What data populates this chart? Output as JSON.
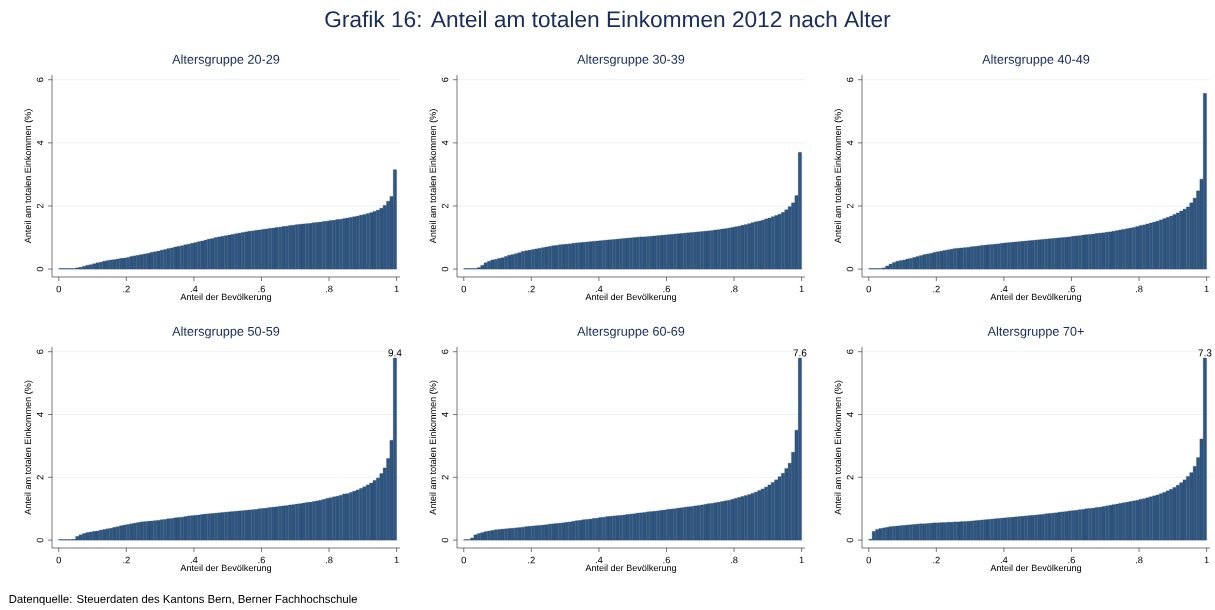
{
  "chart_data": [
    {
      "type": "histogram",
      "title": "Altersgruppe 20-29",
      "xlabel": "Anteil der Bevölkerung",
      "ylabel": "Anteil am totalen Einkommen (%)",
      "color": "#2f5680",
      "grid": "y",
      "annotations": [
        "Grafik 16: Anteil am totalen Einkommen 2012 nach Alter",
        "Datenquelle: Steuerdaten des Kantons Bern, Berner Fachhochschule"
      ],
      "xlim": [
        -0.02,
        1.01
      ],
      "ylim": [
        -0.25,
        6.15
      ],
      "xticks": [
        0,
        {
          "value": 0.2,
          "label": ".2"
        },
        {
          "value": 0.4,
          "label": ".4"
        },
        {
          "value": 0.6,
          "label": ".6"
        },
        {
          "value": 0.8,
          "label": ".8"
        },
        1
      ],
      "yticks": [
        0,
        2,
        4,
        6
      ],
      "bins": [
        0,
        0.01,
        0.02,
        0.03,
        0.04,
        0.05,
        0.06,
        0.07,
        0.08,
        0.09,
        0.1,
        0.11,
        0.12,
        0.13,
        0.14,
        0.15,
        0.16,
        0.17,
        0.18,
        0.19,
        0.2,
        0.21,
        0.22,
        0.23,
        0.24,
        0.25,
        0.26,
        0.27,
        0.28,
        0.29,
        0.3,
        0.31,
        0.32,
        0.33,
        0.34,
        0.35,
        0.36,
        0.37,
        0.38,
        0.39,
        0.4,
        0.41,
        0.42,
        0.43,
        0.44,
        0.45,
        0.46,
        0.47,
        0.48,
        0.49,
        0.5,
        0.51,
        0.52,
        0.53,
        0.54,
        0.55,
        0.56,
        0.57,
        0.58,
        0.59,
        0.6,
        0.61,
        0.62,
        0.63,
        0.64,
        0.65,
        0.66,
        0.67,
        0.68,
        0.69,
        0.7,
        0.71,
        0.72,
        0.73,
        0.74,
        0.75,
        0.76,
        0.77,
        0.78,
        0.79,
        0.8,
        0.81,
        0.82,
        0.83,
        0.84,
        0.85,
        0.86,
        0.87,
        0.88,
        0.89,
        0.9,
        0.91,
        0.92,
        0.93,
        0.94,
        0.95,
        0.96,
        0.97,
        0.98,
        0.99,
        1
      ],
      "values": [
        0.02,
        0.02,
        0.02,
        0.02,
        0.02,
        0.04,
        0.06,
        0.09,
        0.12,
        0.14,
        0.17,
        0.2,
        0.22,
        0.25,
        0.27,
        0.29,
        0.3,
        0.32,
        0.34,
        0.35,
        0.37,
        0.4,
        0.42,
        0.44,
        0.46,
        0.48,
        0.5,
        0.53,
        0.55,
        0.57,
        0.6,
        0.62,
        0.65,
        0.67,
        0.7,
        0.72,
        0.74,
        0.77,
        0.79,
        0.82,
        0.84,
        0.87,
        0.89,
        0.92,
        0.95,
        0.97,
        1.0,
        1.02,
        1.04,
        1.06,
        1.08,
        1.1,
        1.12,
        1.14,
        1.16,
        1.18,
        1.2,
        1.21,
        1.23,
        1.24,
        1.26,
        1.27,
        1.29,
        1.3,
        1.32,
        1.33,
        1.35,
        1.36,
        1.38,
        1.39,
        1.41,
        1.42,
        1.43,
        1.44,
        1.45,
        1.47,
        1.48,
        1.49,
        1.51,
        1.52,
        1.54,
        1.55,
        1.57,
        1.58,
        1.6,
        1.62,
        1.64,
        1.66,
        1.68,
        1.71,
        1.73,
        1.76,
        1.79,
        1.83,
        1.87,
        1.93,
        2.02,
        2.15,
        2.3,
        3.15
      ]
    },
    {
      "type": "histogram",
      "title": "Altersgruppe 30-39",
      "xlabel": "Anteil der Bevölkerung",
      "ylabel": "Anteil am totalen Einkommen (%)",
      "color": "#2f5680",
      "grid": "y",
      "xlim": [
        -0.02,
        1.01
      ],
      "ylim": [
        -0.25,
        6.15
      ],
      "xticks": [
        0,
        {
          "value": 0.2,
          "label": ".2"
        },
        {
          "value": 0.4,
          "label": ".4"
        },
        {
          "value": 0.6,
          "label": ".6"
        },
        {
          "value": 0.8,
          "label": ".8"
        },
        1
      ],
      "yticks": [
        0,
        2,
        4,
        6
      ],
      "bins": [
        0,
        0.01,
        0.02,
        0.03,
        0.04,
        0.05,
        0.06,
        0.07,
        0.08,
        0.09,
        0.1,
        0.11,
        0.12,
        0.13,
        0.14,
        0.15,
        0.16,
        0.17,
        0.18,
        0.19,
        0.2,
        0.21,
        0.22,
        0.23,
        0.24,
        0.25,
        0.26,
        0.27,
        0.28,
        0.29,
        0.3,
        0.31,
        0.32,
        0.33,
        0.34,
        0.35,
        0.36,
        0.37,
        0.38,
        0.39,
        0.4,
        0.41,
        0.42,
        0.43,
        0.44,
        0.45,
        0.46,
        0.47,
        0.48,
        0.49,
        0.5,
        0.51,
        0.52,
        0.53,
        0.54,
        0.55,
        0.56,
        0.57,
        0.58,
        0.59,
        0.6,
        0.61,
        0.62,
        0.63,
        0.64,
        0.65,
        0.66,
        0.67,
        0.68,
        0.69,
        0.7,
        0.71,
        0.72,
        0.73,
        0.74,
        0.75,
        0.76,
        0.77,
        0.78,
        0.79,
        0.8,
        0.81,
        0.82,
        0.83,
        0.84,
        0.85,
        0.86,
        0.87,
        0.88,
        0.89,
        0.9,
        0.91,
        0.92,
        0.93,
        0.94,
        0.95,
        0.96,
        0.97,
        0.98,
        0.99,
        1
      ],
      "values": [
        0.02,
        0.02,
        0.02,
        0.02,
        0.05,
        0.12,
        0.2,
        0.25,
        0.29,
        0.31,
        0.34,
        0.36,
        0.4,
        0.44,
        0.46,
        0.49,
        0.52,
        0.56,
        0.58,
        0.6,
        0.62,
        0.64,
        0.66,
        0.68,
        0.7,
        0.72,
        0.74,
        0.75,
        0.77,
        0.78,
        0.79,
        0.8,
        0.82,
        0.83,
        0.84,
        0.85,
        0.86,
        0.87,
        0.88,
        0.89,
        0.9,
        0.91,
        0.92,
        0.93,
        0.94,
        0.95,
        0.96,
        0.97,
        0.98,
        0.99,
        1.0,
        1.01,
        1.02,
        1.02,
        1.03,
        1.04,
        1.05,
        1.06,
        1.07,
        1.08,
        1.09,
        1.1,
        1.11,
        1.12,
        1.13,
        1.14,
        1.15,
        1.16,
        1.17,
        1.18,
        1.19,
        1.2,
        1.21,
        1.22,
        1.24,
        1.25,
        1.27,
        1.28,
        1.3,
        1.32,
        1.34,
        1.36,
        1.39,
        1.41,
        1.44,
        1.47,
        1.5,
        1.52,
        1.55,
        1.59,
        1.62,
        1.66,
        1.7,
        1.74,
        1.8,
        1.88,
        1.98,
        2.1,
        2.33,
        3.7
      ]
    },
    {
      "type": "histogram",
      "title": "Altersgruppe 40-49",
      "xlabel": "Anteil der Bevölkerung",
      "ylabel": "Anteil am totalen Einkommen (%)",
      "color": "#2f5680",
      "grid": "y",
      "xlim": [
        -0.02,
        1.01
      ],
      "ylim": [
        -0.25,
        6.15
      ],
      "xticks": [
        0,
        {
          "value": 0.2,
          "label": ".2"
        },
        {
          "value": 0.4,
          "label": ".4"
        },
        {
          "value": 0.6,
          "label": ".6"
        },
        {
          "value": 0.8,
          "label": ".8"
        },
        1
      ],
      "yticks": [
        0,
        2,
        4,
        6
      ],
      "bins": [
        0,
        0.01,
        0.02,
        0.03,
        0.04,
        0.05,
        0.06,
        0.07,
        0.08,
        0.09,
        0.1,
        0.11,
        0.12,
        0.13,
        0.14,
        0.15,
        0.16,
        0.17,
        0.18,
        0.19,
        0.2,
        0.21,
        0.22,
        0.23,
        0.24,
        0.25,
        0.26,
        0.27,
        0.28,
        0.29,
        0.3,
        0.31,
        0.32,
        0.33,
        0.34,
        0.35,
        0.36,
        0.37,
        0.38,
        0.39,
        0.4,
        0.41,
        0.42,
        0.43,
        0.44,
        0.45,
        0.46,
        0.47,
        0.48,
        0.49,
        0.5,
        0.51,
        0.52,
        0.53,
        0.54,
        0.55,
        0.56,
        0.57,
        0.58,
        0.59,
        0.6,
        0.61,
        0.62,
        0.63,
        0.64,
        0.65,
        0.66,
        0.67,
        0.68,
        0.69,
        0.7,
        0.71,
        0.72,
        0.73,
        0.74,
        0.75,
        0.76,
        0.77,
        0.78,
        0.79,
        0.8,
        0.81,
        0.82,
        0.83,
        0.84,
        0.85,
        0.86,
        0.87,
        0.88,
        0.89,
        0.9,
        0.91,
        0.92,
        0.93,
        0.94,
        0.95,
        0.96,
        0.97,
        0.98,
        0.99,
        1
      ],
      "values": [
        0.02,
        0.02,
        0.02,
        0.02,
        0.04,
        0.1,
        0.16,
        0.21,
        0.25,
        0.27,
        0.29,
        0.32,
        0.34,
        0.37,
        0.4,
        0.43,
        0.46,
        0.48,
        0.5,
        0.53,
        0.55,
        0.57,
        0.59,
        0.61,
        0.63,
        0.65,
        0.66,
        0.67,
        0.68,
        0.69,
        0.71,
        0.72,
        0.73,
        0.75,
        0.76,
        0.77,
        0.78,
        0.79,
        0.8,
        0.82,
        0.83,
        0.84,
        0.85,
        0.86,
        0.87,
        0.88,
        0.89,
        0.9,
        0.91,
        0.92,
        0.93,
        0.94,
        0.95,
        0.96,
        0.97,
        0.98,
        0.99,
        1.0,
        1.01,
        1.02,
        1.04,
        1.05,
        1.06,
        1.08,
        1.09,
        1.1,
        1.11,
        1.13,
        1.14,
        1.15,
        1.17,
        1.18,
        1.2,
        1.22,
        1.24,
        1.26,
        1.28,
        1.3,
        1.32,
        1.35,
        1.38,
        1.4,
        1.43,
        1.46,
        1.49,
        1.52,
        1.56,
        1.6,
        1.64,
        1.68,
        1.73,
        1.78,
        1.84,
        1.9,
        1.97,
        2.1,
        2.25,
        2.48,
        2.85,
        5.57
      ]
    },
    {
      "type": "histogram",
      "title": "Altersgruppe 50-59",
      "xlabel": "Anteil der Bevölkerung",
      "ylabel": "Anteil am totalen Einkommen (%)",
      "color": "#2f5680",
      "grid": "y",
      "annotations": [
        "9.4"
      ],
      "xlim": [
        -0.02,
        1.01
      ],
      "ylim": [
        -0.25,
        6.15
      ],
      "xticks": [
        0,
        {
          "value": 0.2,
          "label": ".2"
        },
        {
          "value": 0.4,
          "label": ".4"
        },
        {
          "value": 0.6,
          "label": ".6"
        },
        {
          "value": 0.8,
          "label": ".8"
        },
        1
      ],
      "yticks": [
        0,
        2,
        4,
        6
      ],
      "bins": [
        0,
        0.01,
        0.02,
        0.03,
        0.04,
        0.05,
        0.06,
        0.07,
        0.08,
        0.09,
        0.1,
        0.11,
        0.12,
        0.13,
        0.14,
        0.15,
        0.16,
        0.17,
        0.18,
        0.19,
        0.2,
        0.21,
        0.22,
        0.23,
        0.24,
        0.25,
        0.26,
        0.27,
        0.28,
        0.29,
        0.3,
        0.31,
        0.32,
        0.33,
        0.34,
        0.35,
        0.36,
        0.37,
        0.38,
        0.39,
        0.4,
        0.41,
        0.42,
        0.43,
        0.44,
        0.45,
        0.46,
        0.47,
        0.48,
        0.49,
        0.5,
        0.51,
        0.52,
        0.53,
        0.54,
        0.55,
        0.56,
        0.57,
        0.58,
        0.59,
        0.6,
        0.61,
        0.62,
        0.63,
        0.64,
        0.65,
        0.66,
        0.67,
        0.68,
        0.69,
        0.7,
        0.71,
        0.72,
        0.73,
        0.74,
        0.75,
        0.76,
        0.77,
        0.78,
        0.79,
        0.8,
        0.81,
        0.82,
        0.83,
        0.84,
        0.85,
        0.86,
        0.87,
        0.88,
        0.89,
        0.9,
        0.91,
        0.92,
        0.93,
        0.94,
        0.95,
        0.96,
        0.97,
        0.98,
        0.99,
        1
      ],
      "values": [
        0.02,
        0.02,
        0.02,
        0.02,
        0.03,
        0.12,
        0.17,
        0.21,
        0.24,
        0.26,
        0.28,
        0.29,
        0.32,
        0.34,
        0.36,
        0.38,
        0.41,
        0.43,
        0.46,
        0.48,
        0.5,
        0.52,
        0.54,
        0.56,
        0.58,
        0.59,
        0.6,
        0.61,
        0.62,
        0.63,
        0.65,
        0.66,
        0.68,
        0.69,
        0.71,
        0.72,
        0.73,
        0.75,
        0.77,
        0.78,
        0.79,
        0.8,
        0.82,
        0.83,
        0.84,
        0.85,
        0.86,
        0.87,
        0.88,
        0.89,
        0.9,
        0.91,
        0.92,
        0.93,
        0.94,
        0.95,
        0.96,
        0.97,
        0.98,
        1.0,
        1.01,
        1.02,
        1.04,
        1.05,
        1.06,
        1.08,
        1.09,
        1.1,
        1.12,
        1.13,
        1.15,
        1.16,
        1.18,
        1.2,
        1.21,
        1.23,
        1.25,
        1.27,
        1.3,
        1.33,
        1.35,
        1.38,
        1.4,
        1.43,
        1.47,
        1.48,
        1.52,
        1.56,
        1.6,
        1.65,
        1.7,
        1.76,
        1.82,
        1.9,
        1.98,
        2.12,
        2.3,
        2.6,
        3.18,
        5.8
      ]
    },
    {
      "type": "histogram",
      "title": "Altersgruppe 60-69",
      "xlabel": "Anteil der Bevölkerung",
      "ylabel": "Anteil am totalen Einkommen (%)",
      "color": "#2f5680",
      "grid": "y",
      "annotations": [
        "7.6"
      ],
      "xlim": [
        -0.02,
        1.01
      ],
      "ylim": [
        -0.25,
        6.15
      ],
      "xticks": [
        0,
        {
          "value": 0.2,
          "label": ".2"
        },
        {
          "value": 0.4,
          "label": ".4"
        },
        {
          "value": 0.6,
          "label": ".6"
        },
        {
          "value": 0.8,
          "label": ".8"
        },
        1
      ],
      "yticks": [
        0,
        2,
        4,
        6
      ],
      "bins": [
        0,
        0.01,
        0.02,
        0.03,
        0.04,
        0.05,
        0.06,
        0.07,
        0.08,
        0.09,
        0.1,
        0.11,
        0.12,
        0.13,
        0.14,
        0.15,
        0.16,
        0.17,
        0.18,
        0.19,
        0.2,
        0.21,
        0.22,
        0.23,
        0.24,
        0.25,
        0.26,
        0.27,
        0.28,
        0.29,
        0.3,
        0.31,
        0.32,
        0.33,
        0.34,
        0.35,
        0.36,
        0.37,
        0.38,
        0.39,
        0.4,
        0.41,
        0.42,
        0.43,
        0.44,
        0.45,
        0.46,
        0.47,
        0.48,
        0.49,
        0.5,
        0.51,
        0.52,
        0.53,
        0.54,
        0.55,
        0.56,
        0.57,
        0.58,
        0.59,
        0.6,
        0.61,
        0.62,
        0.63,
        0.64,
        0.65,
        0.66,
        0.67,
        0.68,
        0.69,
        0.7,
        0.71,
        0.72,
        0.73,
        0.74,
        0.75,
        0.76,
        0.77,
        0.78,
        0.79,
        0.8,
        0.81,
        0.82,
        0.83,
        0.84,
        0.85,
        0.86,
        0.87,
        0.88,
        0.89,
        0.9,
        0.91,
        0.92,
        0.93,
        0.94,
        0.95,
        0.96,
        0.97,
        0.98,
        0.99,
        1
      ],
      "values": [
        0.02,
        0.02,
        0.07,
        0.17,
        0.21,
        0.24,
        0.27,
        0.29,
        0.31,
        0.33,
        0.34,
        0.35,
        0.36,
        0.37,
        0.38,
        0.39,
        0.4,
        0.41,
        0.43,
        0.44,
        0.45,
        0.46,
        0.47,
        0.48,
        0.49,
        0.51,
        0.52,
        0.53,
        0.54,
        0.55,
        0.57,
        0.58,
        0.6,
        0.62,
        0.63,
        0.65,
        0.66,
        0.67,
        0.69,
        0.7,
        0.72,
        0.73,
        0.75,
        0.76,
        0.77,
        0.78,
        0.79,
        0.8,
        0.82,
        0.83,
        0.84,
        0.86,
        0.87,
        0.88,
        0.9,
        0.91,
        0.92,
        0.93,
        0.95,
        0.96,
        0.98,
        0.99,
        1.0,
        1.02,
        1.03,
        1.05,
        1.06,
        1.07,
        1.09,
        1.1,
        1.12,
        1.14,
        1.16,
        1.17,
        1.19,
        1.21,
        1.23,
        1.25,
        1.27,
        1.3,
        1.33,
        1.36,
        1.39,
        1.42,
        1.45,
        1.49,
        1.53,
        1.58,
        1.63,
        1.69,
        1.76,
        1.84,
        1.92,
        2.02,
        2.13,
        2.28,
        2.45,
        2.8,
        3.5,
        5.8
      ]
    },
    {
      "type": "histogram",
      "title": "Altersgruppe 70+",
      "xlabel": "Anteil der Bevölkerung",
      "ylabel": "Anteil am totalen Einkommen (%)",
      "color": "#2f5680",
      "grid": "y",
      "annotations": [
        "7.3"
      ],
      "xlim": [
        -0.02,
        1.01
      ],
      "ylim": [
        -0.25,
        6.15
      ],
      "xticks": [
        0,
        {
          "value": 0.2,
          "label": ".2"
        },
        {
          "value": 0.4,
          "label": ".4"
        },
        {
          "value": 0.6,
          "label": ".6"
        },
        {
          "value": 0.8,
          "label": ".8"
        },
        1
      ],
      "yticks": [
        0,
        2,
        4,
        6
      ],
      "bins": [
        0,
        0.01,
        0.02,
        0.03,
        0.04,
        0.05,
        0.06,
        0.07,
        0.08,
        0.09,
        0.1,
        0.11,
        0.12,
        0.13,
        0.14,
        0.15,
        0.16,
        0.17,
        0.18,
        0.19,
        0.2,
        0.21,
        0.22,
        0.23,
        0.24,
        0.25,
        0.26,
        0.27,
        0.28,
        0.29,
        0.3,
        0.31,
        0.32,
        0.33,
        0.34,
        0.35,
        0.36,
        0.37,
        0.38,
        0.39,
        0.4,
        0.41,
        0.42,
        0.43,
        0.44,
        0.45,
        0.46,
        0.47,
        0.48,
        0.49,
        0.5,
        0.51,
        0.52,
        0.53,
        0.54,
        0.55,
        0.56,
        0.57,
        0.58,
        0.59,
        0.6,
        0.61,
        0.62,
        0.63,
        0.64,
        0.65,
        0.66,
        0.67,
        0.68,
        0.69,
        0.7,
        0.71,
        0.72,
        0.73,
        0.74,
        0.75,
        0.76,
        0.77,
        0.78,
        0.79,
        0.8,
        0.81,
        0.82,
        0.83,
        0.84,
        0.85,
        0.86,
        0.87,
        0.88,
        0.89,
        0.9,
        0.91,
        0.92,
        0.93,
        0.94,
        0.95,
        0.96,
        0.97,
        0.98,
        0.99,
        1
      ],
      "values": [
        0.03,
        0.28,
        0.34,
        0.37,
        0.39,
        0.41,
        0.43,
        0.44,
        0.45,
        0.46,
        0.47,
        0.48,
        0.49,
        0.5,
        0.51,
        0.52,
        0.52,
        0.53,
        0.54,
        0.55,
        0.55,
        0.56,
        0.56,
        0.57,
        0.57,
        0.58,
        0.58,
        0.59,
        0.59,
        0.6,
        0.61,
        0.62,
        0.63,
        0.64,
        0.65,
        0.66,
        0.67,
        0.68,
        0.69,
        0.7,
        0.71,
        0.72,
        0.73,
        0.74,
        0.75,
        0.76,
        0.77,
        0.78,
        0.79,
        0.8,
        0.81,
        0.82,
        0.84,
        0.85,
        0.86,
        0.87,
        0.89,
        0.9,
        0.91,
        0.93,
        0.94,
        0.95,
        0.97,
        0.98,
        1.0,
        1.01,
        1.02,
        1.04,
        1.05,
        1.07,
        1.09,
        1.11,
        1.13,
        1.15,
        1.17,
        1.19,
        1.21,
        1.23,
        1.25,
        1.27,
        1.3,
        1.32,
        1.35,
        1.38,
        1.41,
        1.44,
        1.48,
        1.52,
        1.57,
        1.62,
        1.68,
        1.75,
        1.83,
        1.92,
        2.03,
        2.15,
        2.35,
        2.63,
        3.22,
        5.8
      ]
    }
  ]
}
